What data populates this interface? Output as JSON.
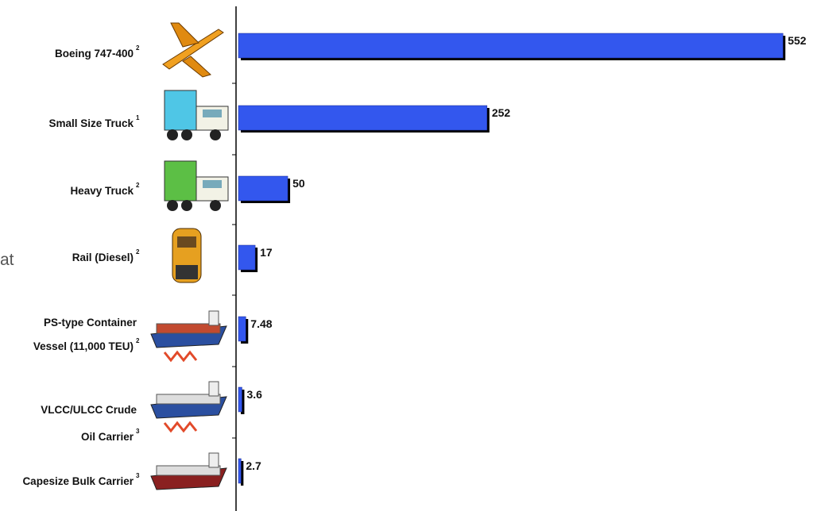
{
  "chart_data": {
    "type": "bar",
    "orientation": "horizontal",
    "side_text": "at",
    "categories": [
      [
        "Boeing 747-400"
      ],
      [
        "Small Size Truck"
      ],
      [
        "Heavy Truck"
      ],
      [
        "Rail (Diesel)"
      ],
      [
        "PS-type Container",
        "Vessel (11,000 TEU)"
      ],
      [
        "VLCC/ULCC Crude",
        "Oil Carrier"
      ],
      [
        "Capesize Bulk Carrier"
      ]
    ],
    "category_notes": [
      "2",
      "1",
      "2",
      "2",
      "2",
      "3",
      "3"
    ],
    "values": [
      552,
      252,
      50,
      17,
      7.48,
      3.6,
      2.7
    ],
    "color": "#3357ee",
    "xlim": [
      0,
      580
    ]
  }
}
